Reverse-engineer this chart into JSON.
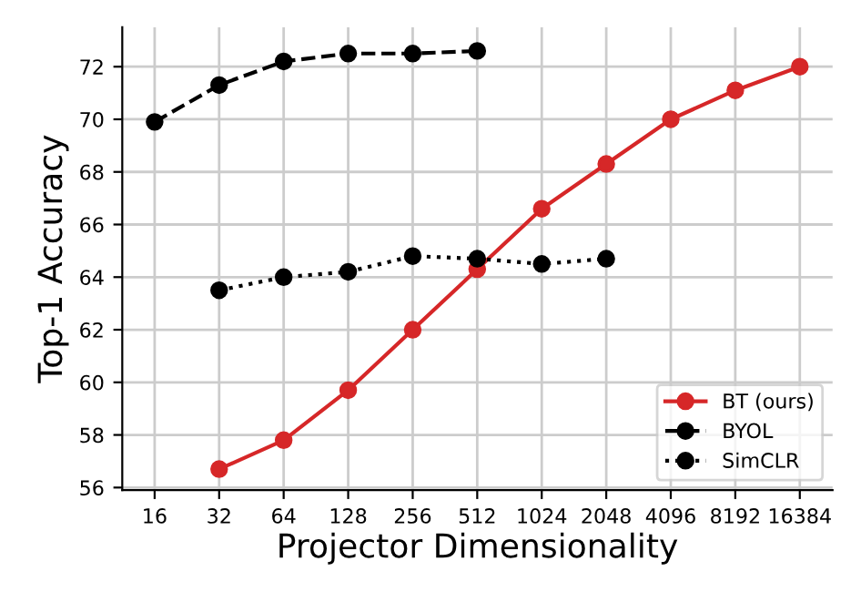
{
  "chart_data": {
    "type": "line",
    "xlabel": "Projector Dimensionality",
    "ylabel": "Top-1 Accuracy",
    "log": "x",
    "xlim": [
      11.3,
      23300
    ],
    "xticks": [
      16,
      32,
      64,
      128,
      256,
      512,
      1024,
      2048,
      4096,
      8192,
      16384
    ],
    "ylim": [
      55.9,
      73.5
    ],
    "yticks": [
      56,
      58,
      60,
      62,
      64,
      66,
      68,
      70,
      72
    ],
    "grid": true,
    "legend": "bottom right",
    "marker": "circle",
    "series": [
      {
        "name": "BT (ours)",
        "color": "#d62728",
        "line_style": "solid",
        "x": [
          32,
          64,
          128,
          256,
          512,
          1024,
          2048,
          4096,
          8192,
          16384
        ],
        "values": [
          56.7,
          57.8,
          59.7,
          62.0,
          64.3,
          66.6,
          68.3,
          70.0,
          71.1,
          72.0
        ]
      },
      {
        "name": "BYOL",
        "color": "#000000",
        "line_style": "dashed",
        "x": [
          16,
          32,
          64,
          128,
          256,
          512
        ],
        "values": [
          69.9,
          71.3,
          72.2,
          72.5,
          72.5,
          72.6
        ]
      },
      {
        "name": "SimCLR",
        "color": "#000000",
        "line_style": "dotted",
        "x": [
          32,
          64,
          128,
          256,
          512,
          1024,
          2048
        ],
        "values": [
          63.5,
          64.0,
          64.2,
          64.8,
          64.7,
          64.5,
          64.7
        ]
      }
    ]
  }
}
